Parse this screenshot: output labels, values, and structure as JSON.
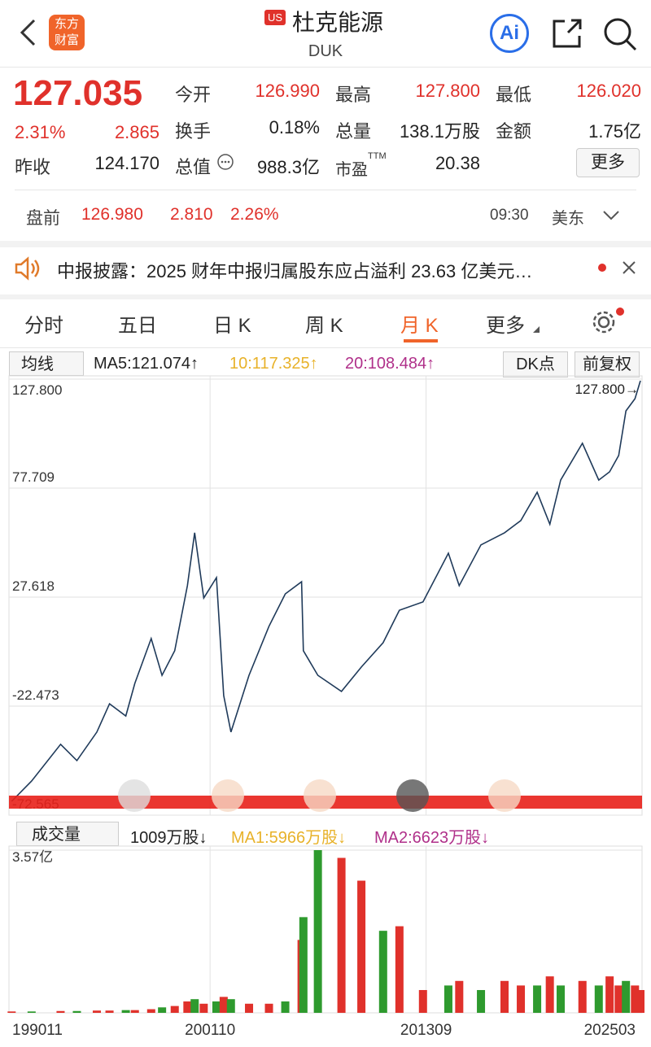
{
  "nav": {
    "logo": "东方财富",
    "market_badge": "US",
    "name": "杜克能源",
    "code": "DUK",
    "ai": "Ai"
  },
  "quote": {
    "price": "127.035",
    "change_pct": "2.31%",
    "change": "2.865",
    "open": {
      "label": "今开",
      "value": "126.990"
    },
    "high": {
      "label": "最高",
      "value": "127.800"
    },
    "low": {
      "label": "最低",
      "value": "126.020"
    },
    "turnover": {
      "label": "换手",
      "value": "0.18%"
    },
    "volume": {
      "label": "总量",
      "value": "138.1万股"
    },
    "amount": {
      "label": "金额",
      "value": "1.75亿"
    },
    "prev_close": {
      "label": "昨收",
      "value": "124.170"
    },
    "market_cap": {
      "label": "总值",
      "value": "988.3亿"
    },
    "pe": {
      "label": "市盈",
      "sup": "TTM",
      "value": "20.38"
    },
    "more": "更多"
  },
  "premarket": {
    "label": "盘前",
    "price": "126.980",
    "change": "2.810",
    "pct": "2.26%",
    "time": "09:30",
    "market": "美东"
  },
  "notice": {
    "text": "中报披露：2025 财年中报归属股东应占溢利 23.63 亿美元…"
  },
  "tabs": [
    "分时",
    "五日",
    "日 K",
    "周 K",
    "月 K",
    "更多"
  ],
  "ma_legend": {
    "selector": "均线",
    "ma5": "MA5:121.074↑",
    "ma10": "10:117.325↑",
    "ma20": "20:108.484↑",
    "dk": "DK点",
    "adjust": "前复权"
  },
  "price_chart": {
    "type": "line",
    "color": "#1f3a5a",
    "annotation": "127.800→",
    "ylim": [
      -72.565,
      127.8
    ],
    "yticks": [
      {
        "value": 127.8,
        "label": "127.800"
      },
      77.709,
      27.618,
      -22.473,
      -72.565
    ],
    "xlim": [
      1990.83,
      2025.5
    ],
    "xticks": [
      {
        "value": 1990.83,
        "label": "199011"
      },
      {
        "value": 2001.75,
        "label": "200110"
      },
      {
        "value": 2013.67,
        "label": "201309"
      },
      {
        "value": 2025.17,
        "label": "202503"
      }
    ],
    "x": [
      1990.8,
      1991.9,
      1993.5,
      1994.4,
      1995.5,
      1996.2,
      1997.1,
      1997.6,
      1998.5,
      1999.1,
      1999.8,
      2000.5,
      2000.9,
      2001.4,
      2002.1,
      2002.5,
      2002.9,
      2003.9,
      2005.0,
      2005.9,
      2006.8,
      2006.9,
      2007.7,
      2009.0,
      2010.1,
      2011.3,
      2012.2,
      2013.5,
      2014.9,
      2015.5,
      2016.7,
      2018.0,
      2018.9,
      2019.8,
      2020.5,
      2021.1,
      2022.3,
      2023.2,
      2023.8,
      2024.3,
      2024.7,
      2025.2,
      2025.5
    ],
    "values": [
      -66.2,
      -56.9,
      -40.0,
      -47.5,
      -34.4,
      -21.4,
      -27.0,
      -12.0,
      8.6,
      -8.3,
      3.0,
      32.9,
      57.2,
      27.2,
      36.6,
      -17.6,
      -34.4,
      -8.3,
      14.2,
      29.1,
      34.7,
      3.0,
      -8.3,
      -15.7,
      -4.5,
      6.7,
      21.6,
      25.4,
      47.8,
      32.9,
      51.6,
      57.2,
      62.8,
      75.8,
      61.1,
      81.4,
      98.3,
      81.4,
      85.2,
      92.7,
      113.2,
      118.8,
      127.035
    ]
  },
  "volume_legend": {
    "selector": "成交量",
    "vol": "1009万股↓",
    "ma1": "MA1:5966万股↓",
    "ma2": "MA2:6623万股↓"
  },
  "volume_chart": {
    "type": "bar",
    "ylim": [
      0,
      3.57
    ],
    "yticks": [
      {
        "value": 3.57,
        "label": "3.57亿"
      }
    ],
    "values": [
      0.03,
      0.03,
      0.04,
      0.04,
      0.05,
      0.05,
      0.06,
      0.06,
      0.08,
      0.12,
      0.15,
      0.25,
      0.3,
      0.2,
      0.25,
      0.35,
      0.3,
      0.2,
      0.2,
      0.25,
      1.6,
      2.1,
      3.57,
      3.4,
      2.9,
      1.8,
      1.9,
      0.5,
      0.6,
      0.7,
      0.5,
      0.7,
      0.6,
      0.6,
      0.8,
      0.6,
      0.7,
      0.6,
      0.8,
      0.6,
      0.7,
      0.6,
      0.5
    ],
    "colors": [
      "#e0312b",
      "#2e9a2e",
      "#e0312b",
      "#2e9a2e",
      "#e0312b",
      "#e0312b",
      "#2e9a2e",
      "#e0312b",
      "#e0312b",
      "#2e9a2e",
      "#e0312b",
      "#e0312b",
      "#2e9a2e",
      "#e0312b",
      "#2e9a2e",
      "#e0312b",
      "#2e9a2e",
      "#e0312b",
      "#e0312b",
      "#2e9a2e",
      "#e0312b",
      "#2e9a2e",
      "#2e9a2e",
      "#e0312b",
      "#e0312b",
      "#2e9a2e",
      "#e0312b",
      "#e0312b",
      "#2e9a2e",
      "#e0312b",
      "#2e9a2e",
      "#e0312b",
      "#e0312b",
      "#2e9a2e",
      "#e0312b",
      "#2e9a2e",
      "#e0312b",
      "#2e9a2e",
      "#e0312b",
      "#e0312b",
      "#2e9a2e",
      "#e0312b",
      "#e0312b"
    ]
  }
}
